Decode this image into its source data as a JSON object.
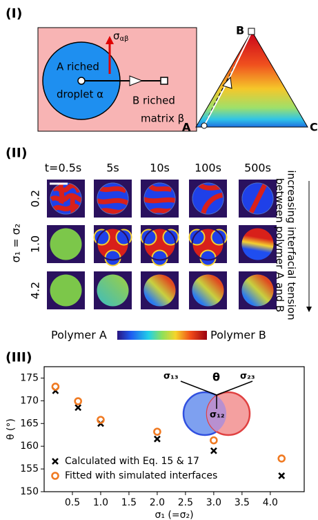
{
  "panel_labels": [
    "(I)",
    "(II)",
    "(III)"
  ],
  "schematic": {
    "sigma": "σ",
    "sigma_sub": "αβ",
    "droplet_lines": [
      "A riched",
      "droplet α"
    ],
    "matrix_lines": [
      "B riched",
      "matrix β"
    ],
    "vertices": [
      "A",
      "B",
      "C"
    ]
  },
  "snapshots": {
    "times": [
      "t=0.5s",
      "5s",
      "10s",
      "100s",
      "500s"
    ],
    "sigma_values": [
      "0.2",
      "1.0",
      "4.2"
    ],
    "y_label": "σ₁ = σ₂",
    "side_label_lines": [
      "increasing interfacial tension",
      "between polymer A and B"
    ],
    "colorbar_left": "Polymer A",
    "colorbar_right": "Polymer B"
  },
  "inset_labels": {
    "s13": "σ₁₃",
    "theta": "θ",
    "s23": "σ₂₃",
    "s12": "σ₁₂"
  },
  "chart_data": {
    "type": "scatter",
    "x_label": "σ₁ (=σ₂)",
    "y_label": "θ (°)",
    "xlim": [
      0,
      4.6
    ],
    "xticks": [
      {
        "value": 0.5,
        "label": "0.5"
      },
      {
        "value": 1,
        "label": "1.0"
      },
      {
        "value": 1.5,
        "label": "1.5"
      },
      {
        "value": 2,
        "label": "2.0"
      },
      {
        "value": 2.5,
        "label": "2.5"
      },
      {
        "value": 3,
        "label": "3.0"
      },
      {
        "value": 3.5,
        "label": "3.5"
      },
      {
        "value": 4,
        "label": "4.0"
      }
    ],
    "ylim": [
      150,
      177.5
    ],
    "yticks": [
      150,
      155,
      160,
      165,
      170,
      175
    ],
    "x": [
      0.2,
      0.6,
      1,
      2,
      3,
      4.2
    ],
    "series": [
      {
        "name": "Calculated with Eq. 15 & 17",
        "color": "#000000",
        "marker": "x",
        "values": [
          172.2,
          168.5,
          165.0,
          161.6,
          159.0,
          153.5
        ]
      },
      {
        "name": "Fitted with simulated interfaces",
        "color": "#f07a22",
        "marker": "o",
        "values": [
          173.1,
          169.9,
          165.8,
          163.2,
          161.3,
          157.3
        ]
      }
    ]
  }
}
